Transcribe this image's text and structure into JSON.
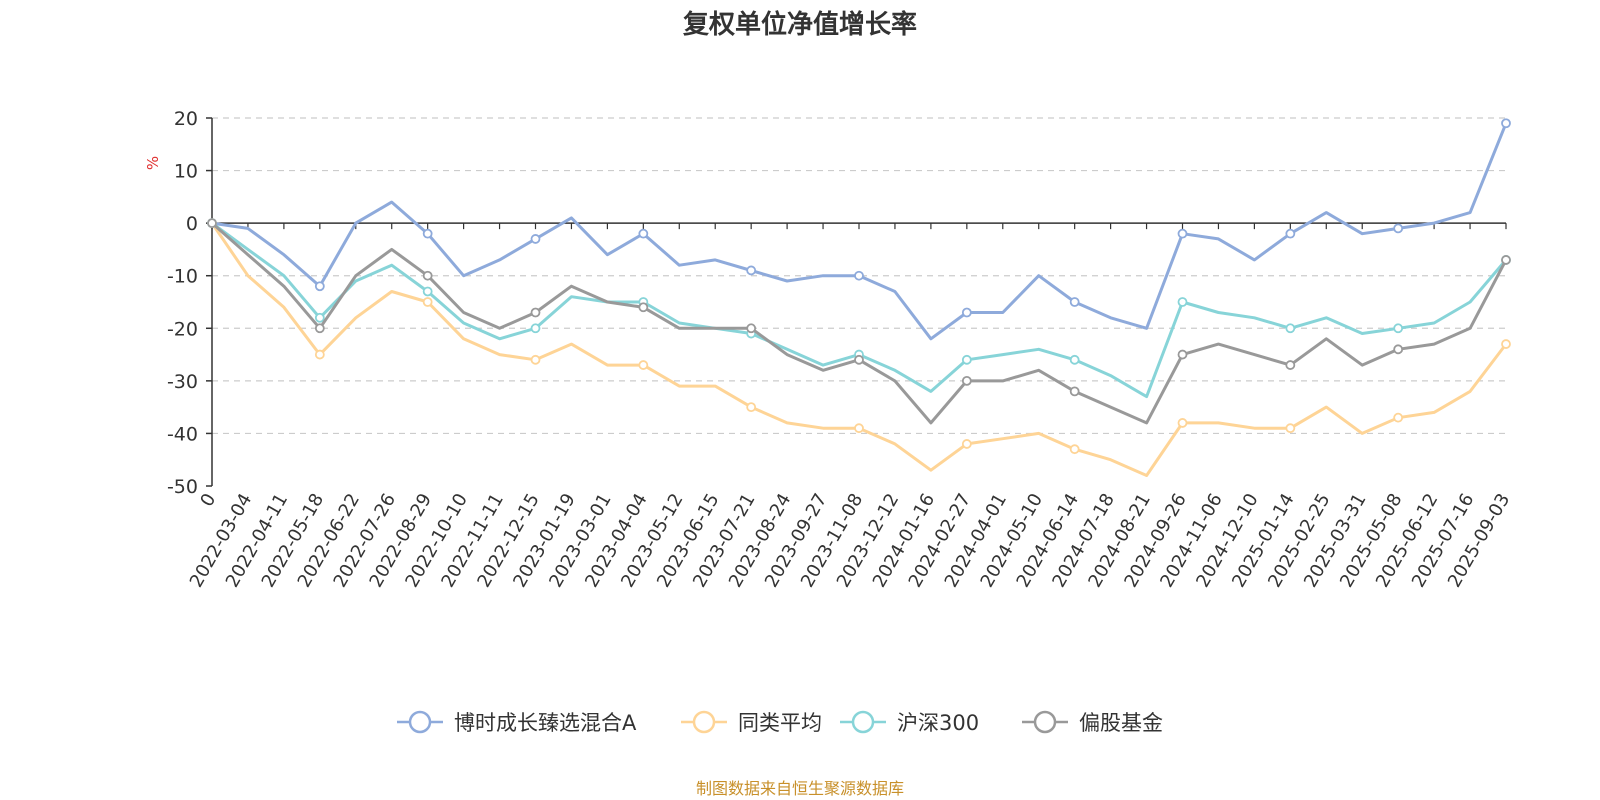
{
  "chart_data": {
    "type": "line",
    "title": "复权单位净值增长率",
    "ylabel": "%",
    "ylim": [
      -50,
      20
    ],
    "yticks": [
      20,
      10,
      0,
      -10,
      -20,
      -30,
      -40,
      -50
    ],
    "x_origin_label": "0",
    "x_tick_labels": [
      "2022-03-04",
      "2022-04-11",
      "2022-05-18",
      "2022-06-22",
      "2022-07-26",
      "2022-08-29",
      "2022-10-10",
      "2022-11-11",
      "2022-12-15",
      "2023-01-19",
      "2023-03-01",
      "2023-04-04",
      "2023-05-12",
      "2023-06-15",
      "2023-07-21",
      "2023-08-24",
      "2023-09-27",
      "2023-11-08",
      "2023-12-12",
      "2024-01-16",
      "2024-02-27",
      "2024-04-01",
      "2024-05-10",
      "2024-06-14",
      "2024-07-18",
      "2024-08-21",
      "2024-09-26",
      "2024-11-06",
      "2024-12-10",
      "2025-01-14",
      "2025-02-25",
      "2025-03-31",
      "2025-05-08",
      "2025-06-12",
      "2025-07-16",
      "2025-09-03"
    ],
    "grid": true,
    "legend_position": "bottom",
    "x": [
      "0",
      "2022-03-04",
      "2022-04-11",
      "2022-05-18",
      "2022-06-22",
      "2022-07-26",
      "2022-08-29",
      "2022-10-10",
      "2022-11-11",
      "2022-12-15",
      "2023-01-19",
      "2023-03-01",
      "2023-04-04",
      "2023-05-12",
      "2023-06-15",
      "2023-07-21",
      "2023-08-24",
      "2023-09-27",
      "2023-11-08",
      "2023-12-12",
      "2024-01-16",
      "2024-02-27",
      "2024-04-01",
      "2024-05-10",
      "2024-06-14",
      "2024-07-18",
      "2024-08-21",
      "2024-09-26",
      "2024-11-06",
      "2024-12-10",
      "2025-01-14",
      "2025-02-25",
      "2025-03-31",
      "2025-05-08",
      "2025-06-12",
      "2025-07-16",
      "2025-09-03"
    ],
    "series": [
      {
        "name": "博时成长臻选混合A",
        "color": "#8eaadb",
        "values": [
          0,
          -1,
          -6,
          -12,
          0,
          4,
          -2,
          -10,
          -7,
          -3,
          1,
          -6,
          -2,
          -8,
          -7,
          -9,
          -11,
          -10,
          -10,
          -13,
          -22,
          -17,
          -17,
          -10,
          -15,
          -18,
          -20,
          -2,
          -3,
          -7,
          -2,
          2,
          -2,
          -1,
          0,
          2,
          19
        ]
      },
      {
        "name": "同类平均",
        "color": "#fed496",
        "values": [
          0,
          -10,
          -16,
          -25,
          -18,
          -13,
          -15,
          -22,
          -25,
          -26,
          -23,
          -27,
          -27,
          -31,
          -31,
          -35,
          -38,
          -39,
          -39,
          -42,
          -47,
          -42,
          -41,
          -40,
          -43,
          -45,
          -48,
          -38,
          -38,
          -39,
          -39,
          -35,
          -40,
          -37,
          -36,
          -32,
          -23
        ]
      },
      {
        "name": "沪深300",
        "color": "#87d4d8",
        "values": [
          0,
          -5,
          -10,
          -18,
          -11,
          -8,
          -13,
          -19,
          -22,
          -20,
          -14,
          -15,
          -15,
          -19,
          -20,
          -21,
          -24,
          -27,
          -25,
          -28,
          -32,
          -26,
          -25,
          -24,
          -26,
          -29,
          -33,
          -15,
          -17,
          -18,
          -20,
          -18,
          -21,
          -20,
          -19,
          -15,
          -7
        ]
      },
      {
        "name": "偏股基金",
        "color": "#999999",
        "values": [
          0,
          -6,
          -12,
          -20,
          -10,
          -5,
          -10,
          -17,
          -20,
          -17,
          -12,
          -15,
          -16,
          -20,
          -20,
          -20,
          -25,
          -28,
          -26,
          -30,
          -38,
          -30,
          -30,
          -28,
          -32,
          -35,
          -38,
          -25,
          -23,
          -25,
          -27,
          -22,
          -27,
          -24,
          -23,
          -20,
          -7
        ]
      }
    ]
  },
  "legend": {
    "items": [
      "博时成长臻选混合A",
      "同类平均",
      "沪深300",
      "偏股基金"
    ]
  },
  "footer": {
    "source": "制图数据来自恒生聚源数据库"
  }
}
